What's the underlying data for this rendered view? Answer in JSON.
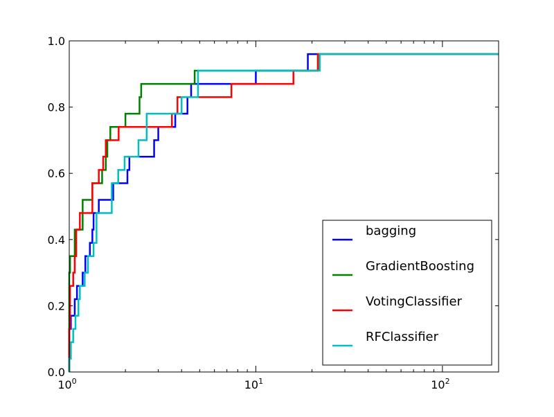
{
  "chart_data": {
    "type": "line",
    "title": "",
    "xlabel": "",
    "ylabel": "",
    "xscale": "log",
    "xlim": [
      1,
      200
    ],
    "ylim": [
      0.0,
      1.0
    ],
    "grid": false,
    "legend_position": "lower-right",
    "x_ticks": [
      {
        "value": 1,
        "base": "10",
        "exp": "0"
      },
      {
        "value": 10,
        "base": "10",
        "exp": "1"
      },
      {
        "value": 100,
        "base": "10",
        "exp": "2"
      }
    ],
    "y_ticks": [
      {
        "value": 0.0,
        "label": "0.0"
      },
      {
        "value": 0.2,
        "label": "0.2"
      },
      {
        "value": 0.4,
        "label": "0.4"
      },
      {
        "value": 0.6,
        "label": "0.6"
      },
      {
        "value": 0.8,
        "label": "0.8"
      },
      {
        "value": 1.0,
        "label": "1.0"
      }
    ],
    "series": [
      {
        "name": "bagging",
        "color": "#0000ff",
        "points": [
          [
            1.0,
            0.0
          ],
          [
            1.0,
            0.13
          ],
          [
            1.02,
            0.13
          ],
          [
            1.02,
            0.17
          ],
          [
            1.07,
            0.17
          ],
          [
            1.07,
            0.22
          ],
          [
            1.1,
            0.22
          ],
          [
            1.1,
            0.26
          ],
          [
            1.18,
            0.26
          ],
          [
            1.18,
            0.3
          ],
          [
            1.22,
            0.3
          ],
          [
            1.22,
            0.35
          ],
          [
            1.29,
            0.35
          ],
          [
            1.29,
            0.39
          ],
          [
            1.33,
            0.39
          ],
          [
            1.33,
            0.43
          ],
          [
            1.35,
            0.43
          ],
          [
            1.35,
            0.48
          ],
          [
            1.44,
            0.48
          ],
          [
            1.44,
            0.52
          ],
          [
            1.72,
            0.52
          ],
          [
            1.72,
            0.57
          ],
          [
            2.05,
            0.57
          ],
          [
            2.05,
            0.61
          ],
          [
            2.1,
            0.61
          ],
          [
            2.1,
            0.65
          ],
          [
            2.85,
            0.65
          ],
          [
            2.85,
            0.7
          ],
          [
            3.0,
            0.7
          ],
          [
            3.0,
            0.74
          ],
          [
            3.7,
            0.74
          ],
          [
            3.7,
            0.78
          ],
          [
            4.3,
            0.78
          ],
          [
            4.3,
            0.83
          ],
          [
            4.5,
            0.83
          ],
          [
            4.5,
            0.87
          ],
          [
            10.0,
            0.87
          ],
          [
            10.0,
            0.91
          ],
          [
            19.0,
            0.91
          ],
          [
            19.0,
            0.96
          ],
          [
            200.0,
            0.96
          ]
        ]
      },
      {
        "name": "GradientBoosting",
        "color": "#008000",
        "points": [
          [
            1.0,
            0.0
          ],
          [
            1.0,
            0.3
          ],
          [
            1.01,
            0.3
          ],
          [
            1.01,
            0.35
          ],
          [
            1.07,
            0.35
          ],
          [
            1.07,
            0.43
          ],
          [
            1.18,
            0.43
          ],
          [
            1.18,
            0.52
          ],
          [
            1.33,
            0.52
          ],
          [
            1.33,
            0.57
          ],
          [
            1.5,
            0.57
          ],
          [
            1.5,
            0.61
          ],
          [
            1.57,
            0.61
          ],
          [
            1.57,
            0.65
          ],
          [
            1.6,
            0.65
          ],
          [
            1.6,
            0.7
          ],
          [
            1.66,
            0.7
          ],
          [
            1.66,
            0.74
          ],
          [
            2.0,
            0.74
          ],
          [
            2.0,
            0.78
          ],
          [
            2.38,
            0.78
          ],
          [
            2.38,
            0.83
          ],
          [
            2.43,
            0.83
          ],
          [
            2.43,
            0.87
          ],
          [
            4.7,
            0.87
          ],
          [
            4.7,
            0.91
          ],
          [
            21.5,
            0.91
          ],
          [
            21.5,
            0.96
          ],
          [
            200.0,
            0.96
          ]
        ]
      },
      {
        "name": "VotingClassifier",
        "color": "#ff0000",
        "points": [
          [
            1.0,
            0.0
          ],
          [
            1.0,
            0.13
          ],
          [
            1.01,
            0.13
          ],
          [
            1.01,
            0.26
          ],
          [
            1.05,
            0.26
          ],
          [
            1.05,
            0.3
          ],
          [
            1.07,
            0.3
          ],
          [
            1.07,
            0.35
          ],
          [
            1.09,
            0.35
          ],
          [
            1.09,
            0.43
          ],
          [
            1.14,
            0.43
          ],
          [
            1.14,
            0.48
          ],
          [
            1.33,
            0.48
          ],
          [
            1.33,
            0.57
          ],
          [
            1.44,
            0.57
          ],
          [
            1.44,
            0.61
          ],
          [
            1.52,
            0.61
          ],
          [
            1.52,
            0.65
          ],
          [
            1.57,
            0.65
          ],
          [
            1.57,
            0.7
          ],
          [
            1.84,
            0.7
          ],
          [
            1.84,
            0.74
          ],
          [
            3.55,
            0.74
          ],
          [
            3.55,
            0.78
          ],
          [
            3.8,
            0.78
          ],
          [
            3.8,
            0.83
          ],
          [
            7.4,
            0.83
          ],
          [
            7.4,
            0.87
          ],
          [
            15.9,
            0.87
          ],
          [
            15.9,
            0.91
          ],
          [
            21.5,
            0.91
          ],
          [
            21.5,
            0.96
          ],
          [
            200.0,
            0.96
          ]
        ]
      },
      {
        "name": "RFClassifier",
        "color": "#00bfbf",
        "points": [
          [
            1.0,
            0.0
          ],
          [
            1.0,
            0.04
          ],
          [
            1.02,
            0.04
          ],
          [
            1.02,
            0.09
          ],
          [
            1.05,
            0.09
          ],
          [
            1.05,
            0.13
          ],
          [
            1.08,
            0.13
          ],
          [
            1.08,
            0.17
          ],
          [
            1.12,
            0.17
          ],
          [
            1.12,
            0.22
          ],
          [
            1.14,
            0.22
          ],
          [
            1.14,
            0.26
          ],
          [
            1.21,
            0.26
          ],
          [
            1.21,
            0.3
          ],
          [
            1.26,
            0.3
          ],
          [
            1.26,
            0.35
          ],
          [
            1.35,
            0.35
          ],
          [
            1.35,
            0.39
          ],
          [
            1.4,
            0.39
          ],
          [
            1.4,
            0.48
          ],
          [
            1.69,
            0.48
          ],
          [
            1.69,
            0.57
          ],
          [
            1.83,
            0.57
          ],
          [
            1.83,
            0.61
          ],
          [
            1.98,
            0.61
          ],
          [
            1.98,
            0.65
          ],
          [
            2.35,
            0.65
          ],
          [
            2.35,
            0.7
          ],
          [
            2.6,
            0.7
          ],
          [
            2.6,
            0.78
          ],
          [
            4.0,
            0.78
          ],
          [
            4.0,
            0.83
          ],
          [
            4.9,
            0.83
          ],
          [
            4.9,
            0.91
          ],
          [
            22.0,
            0.91
          ],
          [
            22.0,
            0.96
          ],
          [
            200.0,
            0.96
          ]
        ]
      }
    ]
  }
}
